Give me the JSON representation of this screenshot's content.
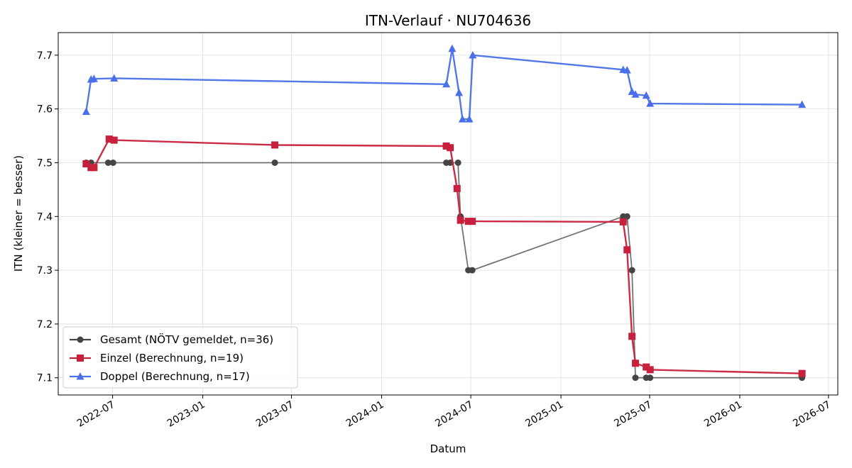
{
  "chart_data": {
    "type": "line",
    "title": "ITN-Verlauf · NU704636",
    "xlabel": "Datum",
    "ylabel": "ITN  (kleiner = besser)",
    "x_is_date": true,
    "xlim": [
      "2022-03-12",
      "2026-07-20"
    ],
    "ylim": [
      7.068,
      7.742
    ],
    "x_ticks": [
      "2022-07-01",
      "2023-01-01",
      "2023-07-01",
      "2024-01-01",
      "2024-07-01",
      "2025-01-01",
      "2025-07-01",
      "2026-01-01",
      "2026-07-01"
    ],
    "x_tick_labels": [
      "2022-07",
      "2023-01",
      "2023-07",
      "2024-01",
      "2024-07",
      "2025-01",
      "2025-07",
      "2026-01",
      "2026-07"
    ],
    "y_ticks": [
      7.1,
      7.2,
      7.3,
      7.4,
      7.5,
      7.6,
      7.7
    ],
    "y_tick_labels": [
      "7.1",
      "7.2",
      "7.3",
      "7.4",
      "7.5",
      "7.6",
      "7.7"
    ],
    "grid": true,
    "legend_position": "lower-left",
    "series": [
      {
        "name": "Gesamt (NÖTV gemeldet, n=36)",
        "color": "#444444",
        "marker": "circle",
        "points": [
          {
            "x": "2022-05-08",
            "y": 7.5
          },
          {
            "x": "2022-05-18",
            "y": 7.5
          },
          {
            "x": "2022-06-22",
            "y": 7.5
          },
          {
            "x": "2022-07-02",
            "y": 7.5
          },
          {
            "x": "2023-05-28",
            "y": 7.5
          },
          {
            "x": "2024-05-12",
            "y": 7.5
          },
          {
            "x": "2024-05-20",
            "y": 7.5
          },
          {
            "x": "2024-06-05",
            "y": 7.5
          },
          {
            "x": "2024-06-10",
            "y": 7.4
          },
          {
            "x": "2024-06-26",
            "y": 7.3
          },
          {
            "x": "2024-07-04",
            "y": 7.3
          },
          {
            "x": "2025-05-08",
            "y": 7.4
          },
          {
            "x": "2025-05-16",
            "y": 7.4
          },
          {
            "x": "2025-05-26",
            "y": 7.3
          },
          {
            "x": "2025-06-02",
            "y": 7.1
          },
          {
            "x": "2025-06-24",
            "y": 7.1
          },
          {
            "x": "2025-07-02",
            "y": 7.1
          },
          {
            "x": "2026-05-08",
            "y": 7.1
          }
        ]
      },
      {
        "name": "Einzel (Berechnung, n=19)",
        "color": "#c8203c",
        "marker": "square",
        "points": [
          {
            "x": "2022-05-08",
            "y": 7.498
          },
          {
            "x": "2022-05-18",
            "y": 7.491
          },
          {
            "x": "2022-05-24",
            "y": 7.491
          },
          {
            "x": "2022-06-24",
            "y": 7.544
          },
          {
            "x": "2022-07-04",
            "y": 7.542
          },
          {
            "x": "2023-05-28",
            "y": 7.533
          },
          {
            "x": "2024-05-12",
            "y": 7.531
          },
          {
            "x": "2024-05-20",
            "y": 7.528
          },
          {
            "x": "2024-06-03",
            "y": 7.452
          },
          {
            "x": "2024-06-10",
            "y": 7.393
          },
          {
            "x": "2024-06-26",
            "y": 7.391
          },
          {
            "x": "2024-07-04",
            "y": 7.391
          },
          {
            "x": "2025-05-08",
            "y": 7.39
          },
          {
            "x": "2025-05-16",
            "y": 7.338
          },
          {
            "x": "2025-05-26",
            "y": 7.177
          },
          {
            "x": "2025-06-02",
            "y": 7.127
          },
          {
            "x": "2025-06-24",
            "y": 7.12
          },
          {
            "x": "2025-07-02",
            "y": 7.115
          },
          {
            "x": "2026-05-08",
            "y": 7.108
          }
        ]
      },
      {
        "name": "Doppel (Berechnung, n=17)",
        "color": "#4a6fe8",
        "marker": "triangle",
        "points": [
          {
            "x": "2022-05-08",
            "y": 7.595
          },
          {
            "x": "2022-05-18",
            "y": 7.655
          },
          {
            "x": "2022-05-24",
            "y": 7.656
          },
          {
            "x": "2022-07-04",
            "y": 7.657
          },
          {
            "x": "2024-05-12",
            "y": 7.646
          },
          {
            "x": "2024-05-24",
            "y": 7.712
          },
          {
            "x": "2024-06-07",
            "y": 7.63
          },
          {
            "x": "2024-06-14",
            "y": 7.581
          },
          {
            "x": "2024-06-28",
            "y": 7.581
          },
          {
            "x": "2024-07-05",
            "y": 7.7
          },
          {
            "x": "2025-05-08",
            "y": 7.673
          },
          {
            "x": "2025-05-16",
            "y": 7.672
          },
          {
            "x": "2025-05-26",
            "y": 7.632
          },
          {
            "x": "2025-06-02",
            "y": 7.627
          },
          {
            "x": "2025-06-24",
            "y": 7.625
          },
          {
            "x": "2025-07-02",
            "y": 7.61
          },
          {
            "x": "2026-05-08",
            "y": 7.608
          }
        ]
      }
    ]
  }
}
